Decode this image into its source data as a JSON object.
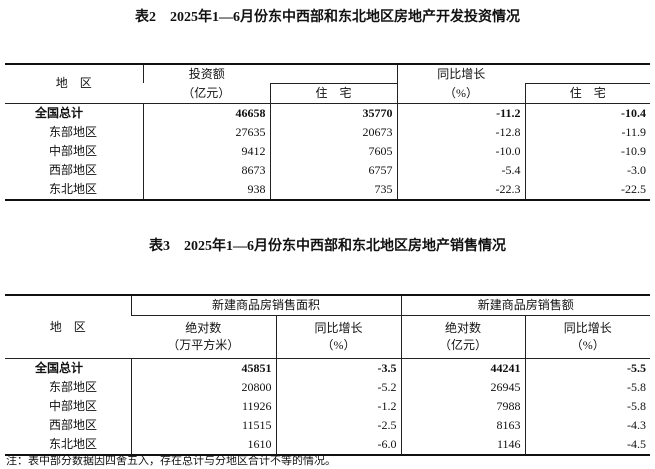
{
  "table2": {
    "title": "表2　2025年1—6月份东中西部和东北地区房地产开发投资情况",
    "headers": {
      "region": "地　区",
      "investment": "投资额",
      "investment_unit": "（亿元）",
      "residential": "住　宅",
      "growth": "同比增长",
      "growth_unit": "（%）",
      "growth_residential": "住　宅"
    },
    "rows": [
      {
        "region": "全国总计",
        "investment": "46658",
        "residential": "35770",
        "growth": "-11.2",
        "growth_residential": "-10.4"
      },
      {
        "region": "东部地区",
        "investment": "27635",
        "residential": "20673",
        "growth": "-12.8",
        "growth_residential": "-11.9"
      },
      {
        "region": "中部地区",
        "investment": "9412",
        "residential": "7605",
        "growth": "-10.0",
        "growth_residential": "-10.9"
      },
      {
        "region": "西部地区",
        "investment": "8673",
        "residential": "6757",
        "growth": "-5.4",
        "growth_residential": "-3.0"
      },
      {
        "region": "东北地区",
        "investment": "938",
        "residential": "735",
        "growth": "-22.3",
        "growth_residential": "-22.5"
      }
    ]
  },
  "table3": {
    "title": "表3　2025年1—6月份东中西部和东北地区房地产销售情况",
    "headers": {
      "region": "地　区",
      "area_group": "新建商品房销售面积",
      "sales_group": "新建商品房销售额",
      "absolute": "绝对数",
      "area_unit": "（万平方米）",
      "growth": "同比增长",
      "pct": "（%）",
      "sales_unit": "（亿元）"
    },
    "rows": [
      {
        "region": "全国总计",
        "area": "45851",
        "area_growth": "-3.5",
        "sales": "44241",
        "sales_growth": "-5.5"
      },
      {
        "region": "东部地区",
        "area": "20800",
        "area_growth": "-5.2",
        "sales": "26945",
        "sales_growth": "-5.8"
      },
      {
        "region": "中部地区",
        "area": "11926",
        "area_growth": "-1.2",
        "sales": "7988",
        "sales_growth": "-5.8"
      },
      {
        "region": "西部地区",
        "area": "11515",
        "area_growth": "-2.5",
        "sales": "8163",
        "sales_growth": "-4.3"
      },
      {
        "region": "东北地区",
        "area": "1610",
        "area_growth": "-6.0",
        "sales": "1146",
        "sales_growth": "-4.5"
      }
    ]
  },
  "note": "注：表中部分数据因四舍五入，存在总计与分地区合计不等的情况。"
}
